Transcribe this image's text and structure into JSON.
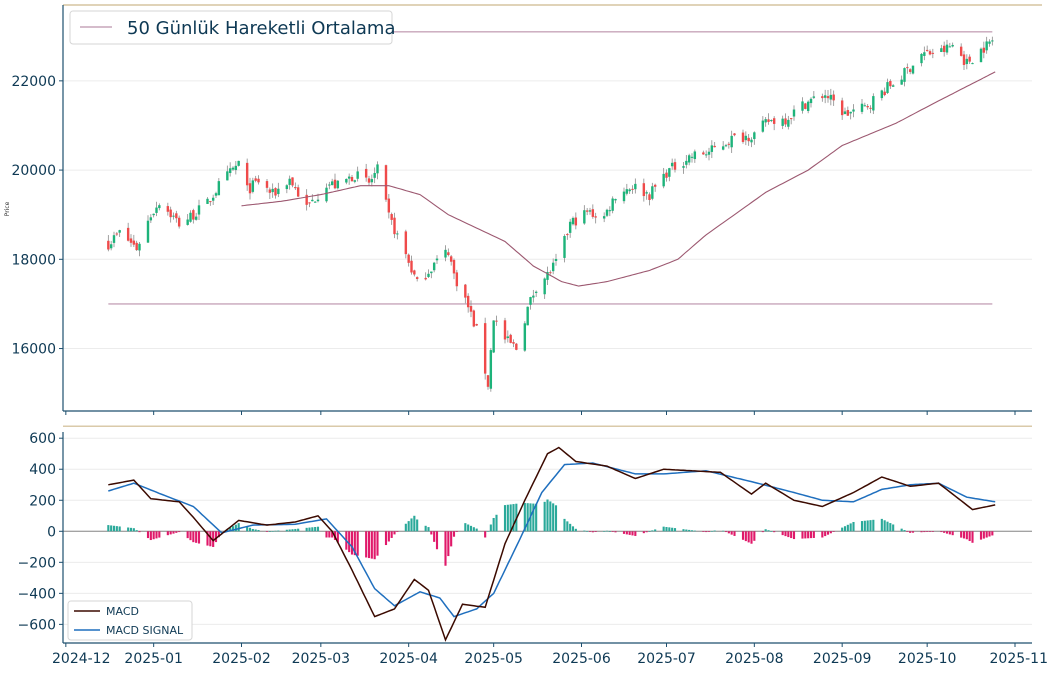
{
  "chart_data": [
    {
      "type": "candlestick",
      "ylabel": "Price",
      "ylim": [
        14600,
        23700
      ],
      "yticks": [
        16000,
        18000,
        20000,
        22000
      ],
      "legend": {
        "label": "50 Günlük Hareketli Ortalama",
        "placement": "top-left"
      },
      "horizontal_lines": [
        17000,
        23100
      ],
      "colors": {
        "up": "#1db37a",
        "down": "#ef4a4a",
        "ma": "#9c5870",
        "hline": "#c7a5ba",
        "top_band": "#cdb98d"
      },
      "anchors": [
        [
          "2024-12-16",
          18350
        ],
        [
          "2024-12-20",
          18600
        ],
        [
          "2024-12-26",
          18250
        ],
        [
          "2024-12-31",
          19000
        ],
        [
          "2025-01-03",
          19300
        ],
        [
          "2025-01-10",
          18800
        ],
        [
          "2025-01-15",
          19000
        ],
        [
          "2025-01-20",
          19250
        ],
        [
          "2025-01-24",
          19650
        ],
        [
          "2025-01-31",
          20150
        ],
        [
          "2025-02-03",
          19550
        ],
        [
          "2025-02-07",
          19750
        ],
        [
          "2025-02-12",
          19450
        ],
        [
          "2025-02-18",
          19800
        ],
        [
          "2025-02-24",
          19150
        ],
        [
          "2025-03-03",
          19700
        ],
        [
          "2025-03-07",
          19650
        ],
        [
          "2025-03-13",
          19900
        ],
        [
          "2025-03-18",
          19700
        ],
        [
          "2025-03-21",
          20000
        ],
        [
          "2025-03-25",
          18950
        ],
        [
          "2025-03-31",
          18100
        ],
        [
          "2025-04-04",
          17450
        ],
        [
          "2025-04-10",
          17900
        ],
        [
          "2025-04-15",
          18200
        ],
        [
          "2025-04-17",
          17650
        ],
        [
          "2025-04-21",
          17100
        ],
        [
          "2025-04-25",
          16400
        ],
        [
          "2025-04-29",
          15200
        ],
        [
          "2025-05-01",
          16700
        ],
        [
          "2025-05-05",
          16200
        ],
        [
          "2025-05-09",
          16000
        ],
        [
          "2025-05-13",
          16900
        ],
        [
          "2025-05-16",
          17400
        ],
        [
          "2025-05-20",
          17650
        ],
        [
          "2025-05-24",
          18000
        ],
        [
          "2025-05-28",
          18800
        ],
        [
          "2025-06-03",
          19050
        ],
        [
          "2025-06-09",
          18950
        ],
        [
          "2025-06-13",
          19450
        ],
        [
          "2025-06-19",
          19650
        ],
        [
          "2025-06-25",
          19450
        ],
        [
          "2025-07-01",
          19950
        ],
        [
          "2025-07-09",
          20300
        ],
        [
          "2025-07-16",
          20400
        ],
        [
          "2025-07-24",
          20700
        ],
        [
          "2025-08-01",
          20800
        ],
        [
          "2025-08-06",
          21100
        ],
        [
          "2025-08-12",
          21150
        ],
        [
          "2025-08-19",
          21500
        ],
        [
          "2025-08-26",
          21700
        ],
        [
          "2025-09-02",
          21250
        ],
        [
          "2025-09-09",
          21400
        ],
        [
          "2025-09-15",
          21750
        ],
        [
          "2025-09-22",
          22100
        ],
        [
          "2025-09-29",
          22600
        ],
        [
          "2025-10-06",
          22650
        ],
        [
          "2025-10-10",
          22800
        ],
        [
          "2025-10-15",
          22400
        ],
        [
          "2025-10-20",
          22700
        ],
        [
          "2025-10-24",
          22900
        ]
      ],
      "ma_series": [
        [
          "2025-02-01",
          19200
        ],
        [
          "2025-02-15",
          19300
        ],
        [
          "2025-03-01",
          19450
        ],
        [
          "2025-03-15",
          19650
        ],
        [
          "2025-03-25",
          19650
        ],
        [
          "2025-04-05",
          19450
        ],
        [
          "2025-04-15",
          19000
        ],
        [
          "2025-04-25",
          18700
        ],
        [
          "2025-05-05",
          18400
        ],
        [
          "2025-05-15",
          17850
        ],
        [
          "2025-05-25",
          17500
        ],
        [
          "2025-05-31",
          17400
        ],
        [
          "2025-06-10",
          17500
        ],
        [
          "2025-06-25",
          17750
        ],
        [
          "2025-07-05",
          18000
        ],
        [
          "2025-07-15",
          18550
        ],
        [
          "2025-07-25",
          19000
        ],
        [
          "2025-08-05",
          19500
        ],
        [
          "2025-08-20",
          20000
        ],
        [
          "2025-09-01",
          20550
        ],
        [
          "2025-09-20",
          21050
        ],
        [
          "2025-10-05",
          21550
        ],
        [
          "2025-10-25",
          22200
        ]
      ]
    },
    {
      "type": "line+bar",
      "ylim": [
        -720,
        640
      ],
      "yticks": [
        -600,
        -400,
        -200,
        0,
        200,
        400,
        600
      ],
      "xticks": [
        "2024-12",
        "2025-01",
        "2025-02",
        "2025-03",
        "2025-04",
        "2025-05",
        "2025-06",
        "2025-07",
        "2025-08",
        "2025-09",
        "2025-10",
        "2025-11"
      ],
      "xlim": [
        "2024-11-30",
        "2025-11-07"
      ],
      "legend": {
        "placement": "bottom-left"
      },
      "series": [
        {
          "name": "MACD",
          "color": "#3b0a00",
          "points": [
            [
              "2024-12-16",
              300
            ],
            [
              "2024-12-25",
              330
            ],
            [
              "2024-12-31",
              210
            ],
            [
              "2025-01-10",
              190
            ],
            [
              "2025-01-15",
              90
            ],
            [
              "2025-01-22",
              -60
            ],
            [
              "2025-01-31",
              70
            ],
            [
              "2025-02-10",
              40
            ],
            [
              "2025-02-20",
              60
            ],
            [
              "2025-02-28",
              100
            ],
            [
              "2025-03-05",
              0
            ],
            [
              "2025-03-12",
              -250
            ],
            [
              "2025-03-20",
              -550
            ],
            [
              "2025-03-27",
              -500
            ],
            [
              "2025-04-03",
              -310
            ],
            [
              "2025-04-08",
              -380
            ],
            [
              "2025-04-14",
              -700
            ],
            [
              "2025-04-20",
              -470
            ],
            [
              "2025-04-28",
              -490
            ],
            [
              "2025-05-05",
              -80
            ],
            [
              "2025-05-12",
              200
            ],
            [
              "2025-05-20",
              500
            ],
            [
              "2025-05-24",
              540
            ],
            [
              "2025-05-30",
              450
            ],
            [
              "2025-06-10",
              420
            ],
            [
              "2025-06-20",
              340
            ],
            [
              "2025-06-30",
              400
            ],
            [
              "2025-07-10",
              390
            ],
            [
              "2025-07-20",
              380
            ],
            [
              "2025-07-31",
              240
            ],
            [
              "2025-08-05",
              310
            ],
            [
              "2025-08-15",
              200
            ],
            [
              "2025-08-25",
              160
            ],
            [
              "2025-09-05",
              250
            ],
            [
              "2025-09-15",
              350
            ],
            [
              "2025-09-25",
              290
            ],
            [
              "2025-10-05",
              310
            ],
            [
              "2025-10-10",
              240
            ],
            [
              "2025-10-17",
              140
            ],
            [
              "2025-10-25",
              170
            ]
          ]
        },
        {
          "name": "MACD SIGNAL",
          "color": "#1f6fbe",
          "points": [
            [
              "2024-12-16",
              260
            ],
            [
              "2024-12-25",
              310
            ],
            [
              "2025-01-05",
              230
            ],
            [
              "2025-01-15",
              160
            ],
            [
              "2025-01-25",
              -10
            ],
            [
              "2025-02-05",
              40
            ],
            [
              "2025-02-20",
              45
            ],
            [
              "2025-03-03",
              80
            ],
            [
              "2025-03-12",
              -100
            ],
            [
              "2025-03-20",
              -370
            ],
            [
              "2025-03-27",
              -480
            ],
            [
              "2025-04-05",
              -390
            ],
            [
              "2025-04-12",
              -430
            ],
            [
              "2025-04-17",
              -550
            ],
            [
              "2025-04-25",
              -500
            ],
            [
              "2025-05-01",
              -400
            ],
            [
              "2025-05-10",
              -60
            ],
            [
              "2025-05-18",
              250
            ],
            [
              "2025-05-26",
              430
            ],
            [
              "2025-06-05",
              440
            ],
            [
              "2025-06-20",
              370
            ],
            [
              "2025-06-30",
              370
            ],
            [
              "2025-07-15",
              390
            ],
            [
              "2025-07-31",
              320
            ],
            [
              "2025-08-15",
              250
            ],
            [
              "2025-08-25",
              200
            ],
            [
              "2025-09-05",
              190
            ],
            [
              "2025-09-15",
              270
            ],
            [
              "2025-09-25",
              300
            ],
            [
              "2025-10-05",
              310
            ],
            [
              "2025-10-15",
              220
            ],
            [
              "2025-10-25",
              190
            ]
          ]
        }
      ],
      "histogram_colors": {
        "positive": "#2aa99a",
        "negative": "#e0196a"
      }
    }
  ]
}
